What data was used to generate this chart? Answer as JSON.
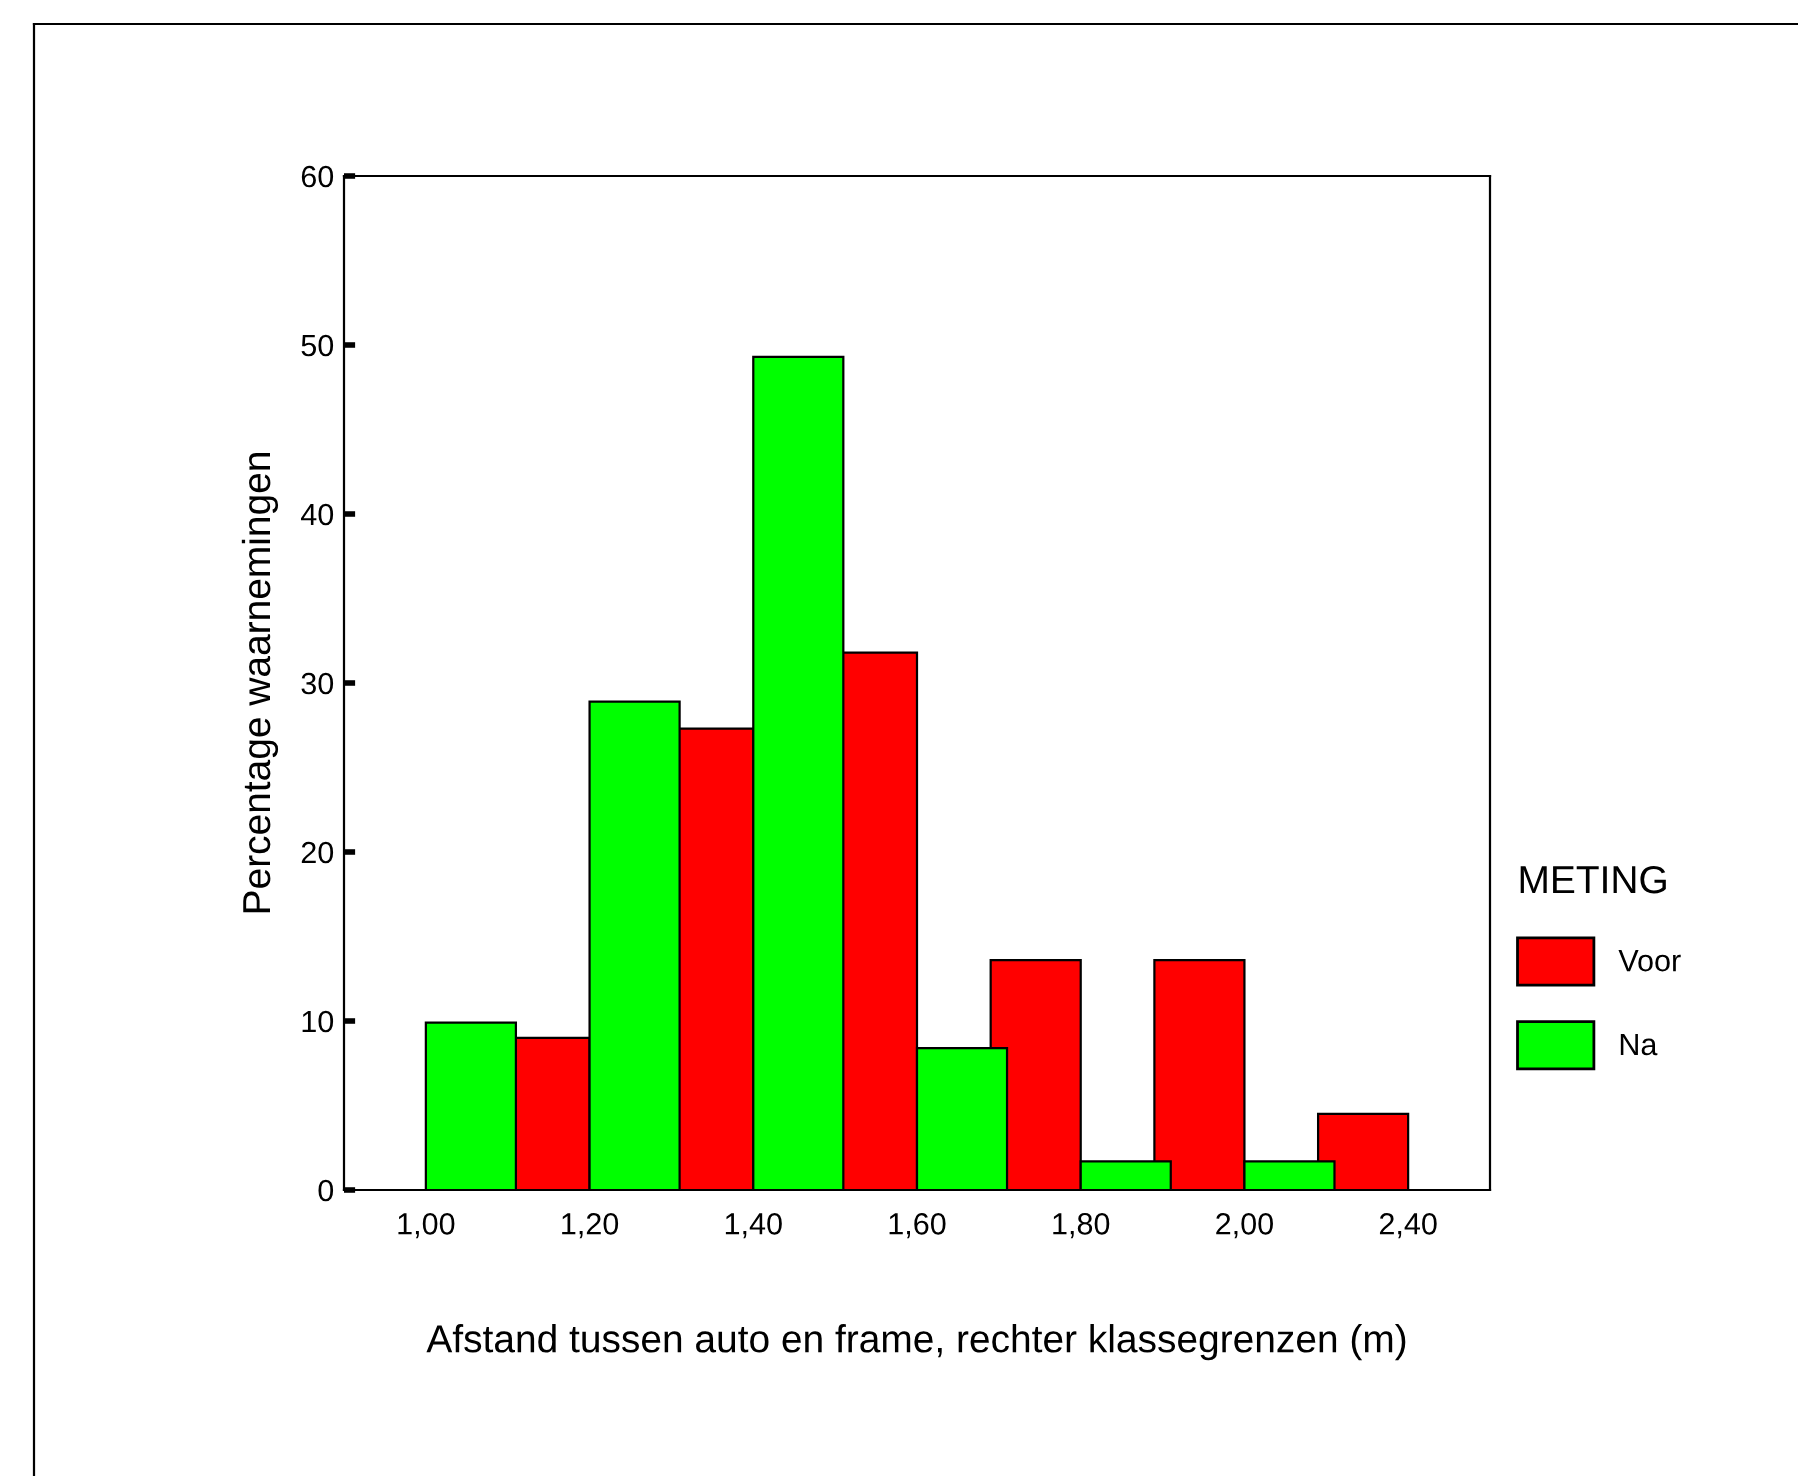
{
  "chart_data": {
    "type": "bar",
    "xlabel": "Afstand tussen auto en frame, rechter klassegrenzen (m)",
    "ylabel": "Percentage waarnemingen",
    "legend_title": "METING",
    "categories": [
      "1,00",
      "1,20",
      "1,40",
      "1,60",
      "1,80",
      "2,00",
      "2,40"
    ],
    "series": [
      {
        "name": "Voor",
        "color": "#ff0000",
        "values": [
          null,
          9.0,
          27.3,
          31.8,
          13.6,
          13.6,
          4.5
        ]
      },
      {
        "name": "Na",
        "color": "#00ff00",
        "values": [
          9.9,
          28.9,
          49.3,
          8.4,
          1.7,
          1.7,
          null
        ]
      }
    ],
    "ylim": [
      0,
      60
    ],
    "yticks": [
      0,
      10,
      20,
      30,
      40,
      50,
      60
    ],
    "grid": false,
    "legend": "right"
  }
}
